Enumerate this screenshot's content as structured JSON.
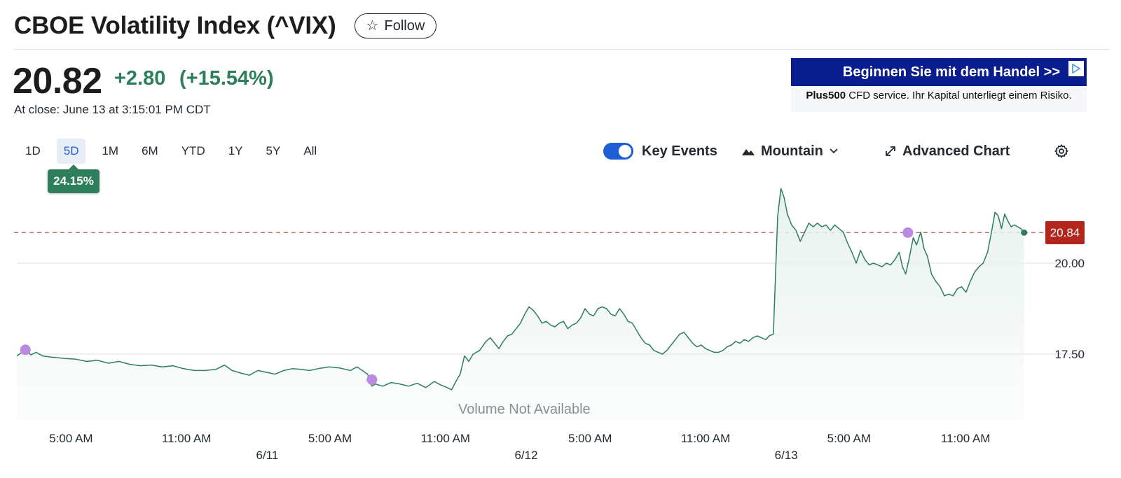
{
  "header": {
    "title": "CBOE Volatility Index (^VIX)",
    "follow_label": "Follow"
  },
  "quote": {
    "price": "20.82",
    "change": "+2.80",
    "change_pct": "(+15.54%)",
    "close_time": "At close: June 13 at 3:15:01 PM CDT"
  },
  "ad": {
    "banner_text": "Beginnen Sie mit dem Handel >>",
    "brand": "Plus500",
    "body_text": " CFD service. Ihr Kapital unterliegt einem Risiko."
  },
  "ranges": [
    {
      "label": "1D",
      "active": false
    },
    {
      "label": "5D",
      "active": true
    },
    {
      "label": "1M",
      "active": false
    },
    {
      "label": "6M",
      "active": false
    },
    {
      "label": "YTD",
      "active": false
    },
    {
      "label": "1Y",
      "active": false
    },
    {
      "label": "5Y",
      "active": false
    },
    {
      "label": "All",
      "active": false
    }
  ],
  "range_change_badge": "24.15%",
  "toolbar": {
    "key_events_label": "Key Events",
    "key_events_on": true,
    "chart_type_label": "Mountain",
    "advanced_chart_label": "Advanced Chart"
  },
  "colors": {
    "line": "#2e7d5b",
    "area": "#e8f2ee",
    "event_dot": "#b98ae0",
    "reference_line": "#b3261e",
    "toggle": "#1f5fd6"
  },
  "chart_data": {
    "type": "area",
    "title": "",
    "y_ticks": [
      "20.00",
      "17.50"
    ],
    "y_tick_values": [
      20.0,
      17.5
    ],
    "ylim": [
      16.3,
      22.2
    ],
    "last_value_label": "20.84",
    "reference_value": 20.84,
    "volume_label": "Volume Not Available",
    "x_time_labels": [
      "5:00 AM",
      "11:00 AM",
      "5:00 AM",
      "11:00 AM",
      "5:00 AM",
      "11:00 AM",
      "5:00 AM",
      "11:00 AM"
    ],
    "x_time_positions": [
      0.054,
      0.157,
      0.285,
      0.388,
      0.517,
      0.62,
      0.748,
      0.852
    ],
    "x_date_labels": [
      "6/11",
      "6/12",
      "6/13"
    ],
    "x_date_positions": [
      0.229,
      0.46,
      0.692
    ],
    "series": [
      {
        "values": [
          [
            0.0,
            17.45
          ],
          [
            0.008,
            17.62
          ],
          [
            0.013,
            17.48
          ],
          [
            0.018,
            17.55
          ],
          [
            0.024,
            17.45
          ],
          [
            0.032,
            17.42
          ],
          [
            0.045,
            17.38
          ],
          [
            0.055,
            17.36
          ],
          [
            0.065,
            17.3
          ],
          [
            0.075,
            17.33
          ],
          [
            0.085,
            17.25
          ],
          [
            0.095,
            17.3
          ],
          [
            0.105,
            17.22
          ],
          [
            0.115,
            17.18
          ],
          [
            0.125,
            17.2
          ],
          [
            0.135,
            17.15
          ],
          [
            0.145,
            17.18
          ],
          [
            0.155,
            17.1
          ],
          [
            0.165,
            17.05
          ],
          [
            0.175,
            17.05
          ],
          [
            0.185,
            17.08
          ],
          [
            0.193,
            17.2
          ],
          [
            0.2,
            17.05
          ],
          [
            0.208,
            16.98
          ],
          [
            0.216,
            16.92
          ],
          [
            0.224,
            17.05
          ],
          [
            0.232,
            17.0
          ],
          [
            0.24,
            16.95
          ],
          [
            0.248,
            17.05
          ],
          [
            0.256,
            17.1
          ],
          [
            0.264,
            17.08
          ],
          [
            0.272,
            17.05
          ],
          [
            0.28,
            17.1
          ],
          [
            0.29,
            17.15
          ],
          [
            0.3,
            17.12
          ],
          [
            0.31,
            17.05
          ],
          [
            0.316,
            17.15
          ],
          [
            0.321,
            17.05
          ],
          [
            0.326,
            16.95
          ],
          [
            0.33,
            16.62
          ],
          [
            0.333,
            16.68
          ],
          [
            0.34,
            16.62
          ],
          [
            0.348,
            16.72
          ],
          [
            0.356,
            16.68
          ],
          [
            0.364,
            16.62
          ],
          [
            0.372,
            16.7
          ],
          [
            0.38,
            16.58
          ],
          [
            0.388,
            16.75
          ],
          [
            0.394,
            16.65
          ],
          [
            0.4,
            16.58
          ],
          [
            0.404,
            16.52
          ],
          [
            0.408,
            16.75
          ],
          [
            0.412,
            16.95
          ],
          [
            0.416,
            17.45
          ],
          [
            0.42,
            17.3
          ],
          [
            0.424,
            17.5
          ],
          [
            0.43,
            17.6
          ],
          [
            0.436,
            17.85
          ],
          [
            0.44,
            17.95
          ],
          [
            0.444,
            17.8
          ],
          [
            0.448,
            17.65
          ],
          [
            0.452,
            17.85
          ],
          [
            0.456,
            18.0
          ],
          [
            0.46,
            18.05
          ],
          [
            0.464,
            18.2
          ],
          [
            0.468,
            18.35
          ],
          [
            0.472,
            18.6
          ],
          [
            0.476,
            18.8
          ],
          [
            0.48,
            18.7
          ],
          [
            0.484,
            18.55
          ],
          [
            0.488,
            18.35
          ],
          [
            0.492,
            18.4
          ],
          [
            0.496,
            18.3
          ],
          [
            0.5,
            18.25
          ],
          [
            0.504,
            18.35
          ],
          [
            0.508,
            18.4
          ],
          [
            0.512,
            18.2
          ],
          [
            0.516,
            18.3
          ],
          [
            0.52,
            18.35
          ],
          [
            0.524,
            18.5
          ],
          [
            0.528,
            18.75
          ],
          [
            0.532,
            18.6
          ],
          [
            0.536,
            18.55
          ],
          [
            0.54,
            18.75
          ],
          [
            0.544,
            18.8
          ],
          [
            0.548,
            18.75
          ],
          [
            0.552,
            18.6
          ],
          [
            0.556,
            18.55
          ],
          [
            0.56,
            18.75
          ],
          [
            0.564,
            18.6
          ],
          [
            0.568,
            18.4
          ],
          [
            0.572,
            18.35
          ],
          [
            0.576,
            18.15
          ],
          [
            0.58,
            17.95
          ],
          [
            0.584,
            17.8
          ],
          [
            0.588,
            17.75
          ],
          [
            0.592,
            17.6
          ],
          [
            0.596,
            17.55
          ],
          [
            0.6,
            17.5
          ],
          [
            0.604,
            17.6
          ],
          [
            0.608,
            17.75
          ],
          [
            0.612,
            17.9
          ],
          [
            0.616,
            18.05
          ],
          [
            0.62,
            18.1
          ],
          [
            0.624,
            17.95
          ],
          [
            0.628,
            17.8
          ],
          [
            0.632,
            17.7
          ],
          [
            0.636,
            17.75
          ],
          [
            0.64,
            17.65
          ],
          [
            0.644,
            17.6
          ],
          [
            0.648,
            17.55
          ],
          [
            0.652,
            17.55
          ],
          [
            0.656,
            17.6
          ],
          [
            0.66,
            17.7
          ],
          [
            0.664,
            17.75
          ],
          [
            0.668,
            17.85
          ],
          [
            0.672,
            17.8
          ],
          [
            0.676,
            17.9
          ],
          [
            0.68,
            17.85
          ],
          [
            0.684,
            17.95
          ],
          [
            0.688,
            18.0
          ],
          [
            0.692,
            17.95
          ],
          [
            0.696,
            17.9
          ],
          [
            0.699,
            18.0
          ],
          [
            0.703,
            18.05
          ],
          [
            0.707,
            21.3
          ],
          [
            0.71,
            22.05
          ],
          [
            0.713,
            21.8
          ],
          [
            0.716,
            21.35
          ],
          [
            0.72,
            21.05
          ],
          [
            0.724,
            20.9
          ],
          [
            0.728,
            20.6
          ],
          [
            0.732,
            20.85
          ],
          [
            0.736,
            21.1
          ],
          [
            0.74,
            21.0
          ],
          [
            0.744,
            21.1
          ],
          [
            0.748,
            21.0
          ],
          [
            0.752,
            21.05
          ],
          [
            0.756,
            20.9
          ],
          [
            0.76,
            21.05
          ],
          [
            0.764,
            20.95
          ],
          [
            0.768,
            20.85
          ],
          [
            0.772,
            20.55
          ],
          [
            0.776,
            20.3
          ],
          [
            0.78,
            20.0
          ],
          [
            0.784,
            20.35
          ],
          [
            0.788,
            20.1
          ],
          [
            0.792,
            19.95
          ],
          [
            0.796,
            20.0
          ],
          [
            0.8,
            19.95
          ],
          [
            0.804,
            19.9
          ],
          [
            0.808,
            20.0
          ],
          [
            0.812,
            19.95
          ],
          [
            0.816,
            20.1
          ],
          [
            0.82,
            20.3
          ],
          [
            0.823,
            19.9
          ],
          [
            0.826,
            19.7
          ],
          [
            0.829,
            20.1
          ],
          [
            0.833,
            20.7
          ],
          [
            0.836,
            20.5
          ],
          [
            0.84,
            20.85
          ],
          [
            0.843,
            20.4
          ],
          [
            0.846,
            20.2
          ],
          [
            0.85,
            19.7
          ],
          [
            0.854,
            19.5
          ],
          [
            0.858,
            19.35
          ],
          [
            0.862,
            19.1
          ],
          [
            0.866,
            19.15
          ],
          [
            0.87,
            19.1
          ],
          [
            0.874,
            19.3
          ],
          [
            0.878,
            19.35
          ],
          [
            0.882,
            19.2
          ],
          [
            0.886,
            19.5
          ],
          [
            0.89,
            19.75
          ],
          [
            0.894,
            19.9
          ],
          [
            0.898,
            20.0
          ],
          [
            0.902,
            20.3
          ],
          [
            0.906,
            20.9
          ],
          [
            0.909,
            21.4
          ],
          [
            0.912,
            21.3
          ],
          [
            0.915,
            20.95
          ],
          [
            0.918,
            21.35
          ],
          [
            0.921,
            21.15
          ],
          [
            0.924,
            21.0
          ],
          [
            0.927,
            21.05
          ],
          [
            0.93,
            21.0
          ],
          [
            0.933,
            20.95
          ],
          [
            0.936,
            20.84
          ]
        ]
      }
    ],
    "key_events": [
      [
        0.008,
        17.62
      ],
      [
        0.33,
        16.8
      ],
      [
        0.828,
        20.84
      ]
    ]
  }
}
